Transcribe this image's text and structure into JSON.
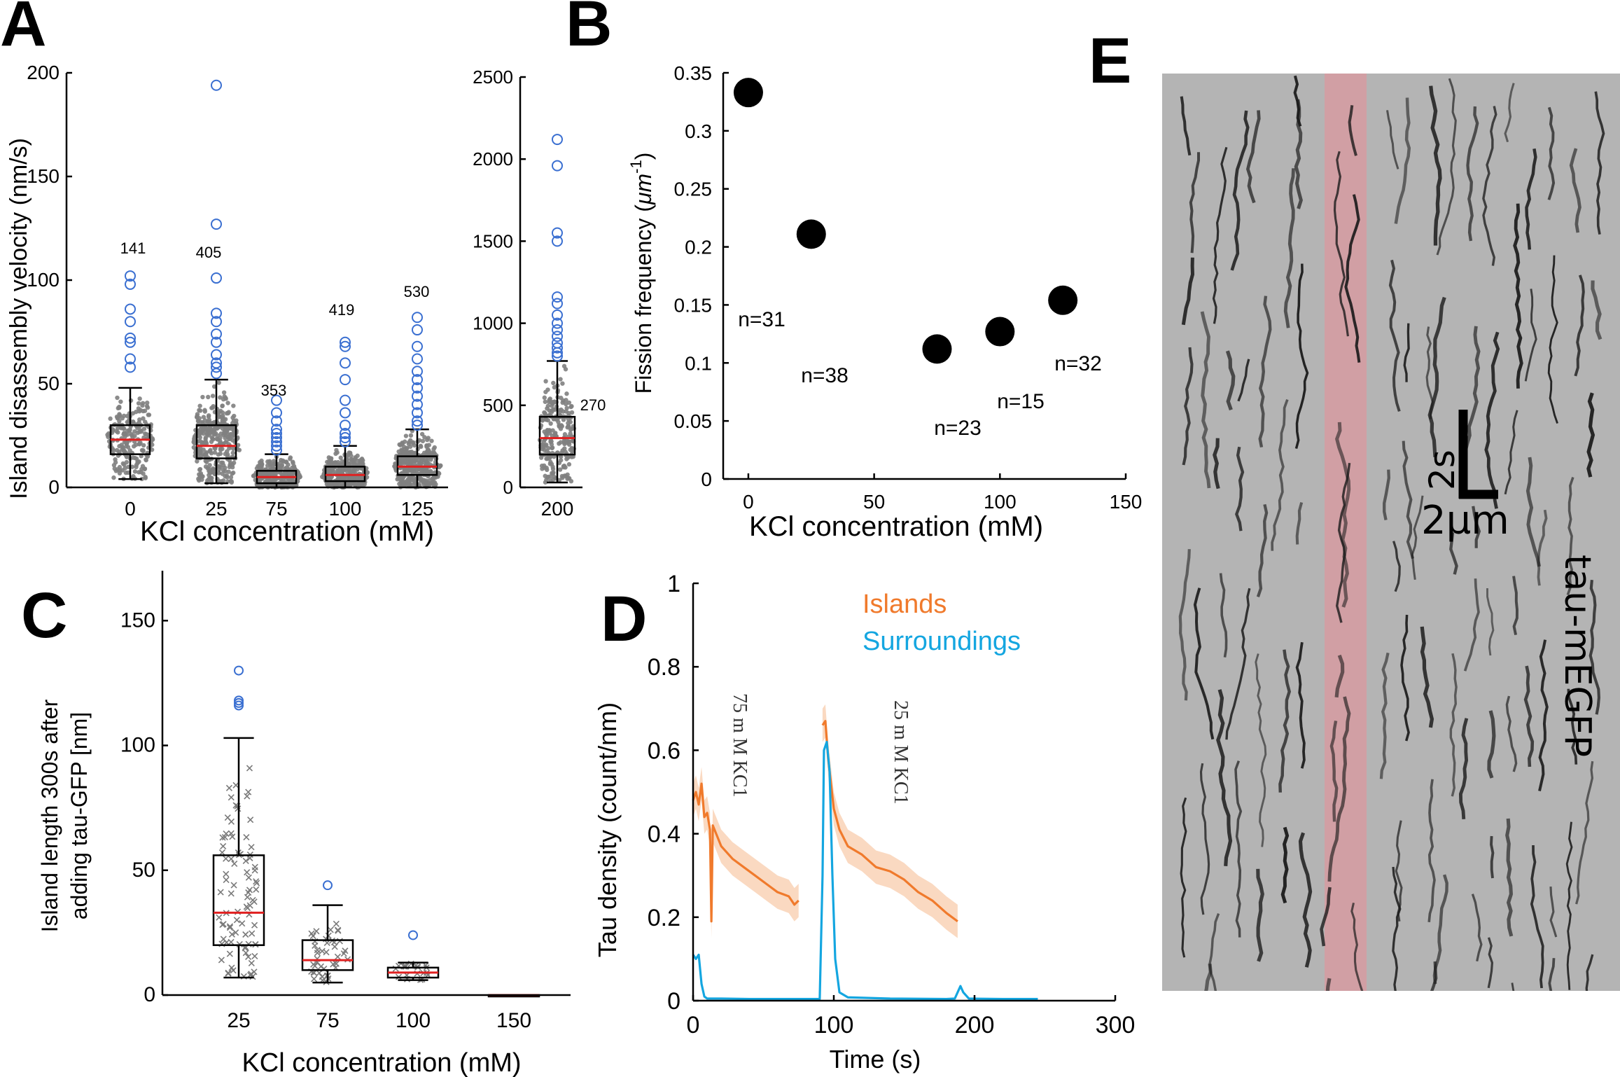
{
  "panel_letters": [
    "A",
    "B",
    "C",
    "D",
    "E"
  ],
  "colors": {
    "axis": "#000000",
    "box_fill_A": "#808080",
    "outlier": "#3a6fd1",
    "median": "#e02020",
    "scatter_C": "#7a7a7a",
    "islands": "#f07a2c",
    "islands_band": "#f8c9a6",
    "surroundings": "#14a6e0",
    "kymo_bg": "#b4b4b4",
    "kymo_band": "#d89aa0"
  },
  "chart_data": [
    {
      "panel": "A",
      "type": "box",
      "xlabel": "KCl concentration (mM)",
      "ylabel": "Island disassembly velocity (nm/s)",
      "ylim": [
        0,
        200
      ],
      "yticks": [
        "0",
        "50",
        "100",
        "150",
        "200"
      ],
      "categories": [
        "0",
        "25",
        "75",
        "100",
        "125"
      ],
      "n_labels": [
        "141",
        "405",
        "353",
        "419",
        "530"
      ],
      "boxes": [
        {
          "q1": 16,
          "median": 23,
          "q3": 30,
          "whisker_low": 4,
          "whisker_high": 48,
          "outliers": [
            102,
            98,
            86,
            80,
            72,
            70,
            62,
            58
          ]
        },
        {
          "q1": 14,
          "median": 20,
          "q3": 30,
          "whisker_low": 2,
          "whisker_high": 52,
          "outliers": [
            194,
            127,
            101,
            84,
            80,
            74,
            70,
            64,
            60,
            58,
            55
          ]
        },
        {
          "q1": 2,
          "median": 5,
          "q3": 8,
          "whisker_low": 0,
          "whisker_high": 16,
          "outliers": [
            42,
            36,
            32,
            28,
            26,
            24,
            22,
            20,
            18
          ]
        },
        {
          "q1": 3,
          "median": 6,
          "q3": 10,
          "whisker_low": 0,
          "whisker_high": 20,
          "outliers": [
            70,
            68,
            60,
            52,
            42,
            36,
            30,
            26,
            24,
            22
          ]
        },
        {
          "q1": 6,
          "median": 10,
          "q3": 15,
          "whisker_low": 0,
          "whisker_high": 28,
          "outliers": [
            82,
            76,
            68,
            62,
            56,
            52,
            48,
            44,
            40,
            36,
            32,
            30
          ]
        }
      ]
    },
    {
      "panel": "A-inset",
      "type": "box",
      "ylim": [
        0,
        2500
      ],
      "yticks": [
        "0",
        "500",
        "1000",
        "1500",
        "2000",
        "2500"
      ],
      "categories": [
        "200"
      ],
      "n_labels": [
        "270"
      ],
      "boxes": [
        {
          "q1": 200,
          "median": 300,
          "q3": 430,
          "whisker_low": 30,
          "whisker_high": 770,
          "outliers": [
            2120,
            1960,
            1550,
            1500,
            1160,
            1120,
            1050,
            1000,
            960,
            920,
            880,
            850,
            820,
            800
          ]
        }
      ]
    },
    {
      "panel": "B",
      "type": "scatter",
      "xlabel": "KCl concentration (mM)",
      "ylabel_pre": "Fission frequency (",
      "ylabel_mu": "μm",
      "ylabel_sup": "-1",
      "ylabel_post": ")",
      "xlim": [
        -10,
        150
      ],
      "ylim": [
        0,
        0.35
      ],
      "xticks": [
        "0",
        "50",
        "100",
        "150"
      ],
      "yticks": [
        "0",
        "0.05",
        "0.1",
        "0.15",
        "0.2",
        "0.25",
        "0.3",
        "0.35"
      ],
      "x": [
        0,
        25,
        75,
        100,
        125
      ],
      "y": [
        0.333,
        0.211,
        0.112,
        0.127,
        0.154
      ],
      "n_labels": [
        "n=31",
        "n=38",
        "n=23",
        "n=15",
        "n=32"
      ]
    },
    {
      "panel": "C",
      "type": "box",
      "xlabel": "KCl concentration (mM)",
      "ylabel_line1": "Island length 300s after",
      "ylabel_line2": "adding tau-GFP [nm]",
      "ylim": [
        0,
        170
      ],
      "yticks": [
        "0",
        "50",
        "100",
        "150"
      ],
      "categories": [
        "25",
        "75",
        "100",
        "150"
      ],
      "boxes": [
        {
          "q1": 20,
          "median": 33,
          "q3": 56,
          "whisker_low": 7,
          "whisker_high": 103,
          "outliers": [
            130,
            118,
            117,
            116
          ]
        },
        {
          "q1": 10,
          "median": 14,
          "q3": 22,
          "whisker_low": 5,
          "whisker_high": 36,
          "outliers": [
            44
          ]
        },
        {
          "q1": 7,
          "median": 9,
          "q3": 11,
          "whisker_low": 6,
          "whisker_high": 13,
          "outliers": [
            24
          ]
        },
        {
          "q1": 0,
          "median": 0,
          "q3": 0,
          "whisker_low": 0,
          "whisker_high": 0,
          "outliers": []
        }
      ]
    },
    {
      "panel": "D",
      "type": "line",
      "xlabel": "Time (s)",
      "ylabel": "Tau density (count/nm)",
      "xlim": [
        0,
        300
      ],
      "ylim": [
        0,
        1
      ],
      "xticks": [
        "0",
        "100",
        "200",
        "300"
      ],
      "yticks": [
        "0",
        "0.2",
        "0.4",
        "0.6",
        "0.8",
        "1"
      ],
      "annotations": [
        "75 m M KC1",
        "25 m M KC1"
      ],
      "series": [
        {
          "name": "Islands",
          "x": [
            0,
            2,
            4,
            6,
            8,
            10,
            12,
            13,
            14,
            20,
            28,
            36,
            44,
            52,
            60,
            68,
            72,
            75
          ],
          "y": [
            0.48,
            0.5,
            0.47,
            0.52,
            0.44,
            0.45,
            0.41,
            0.19,
            0.42,
            0.37,
            0.34,
            0.32,
            0.3,
            0.28,
            0.26,
            0.25,
            0.23,
            0.24
          ]
        },
        {
          "name": "Islands",
          "x": [
            92,
            94,
            96,
            98,
            100,
            104,
            110,
            120,
            130,
            140,
            150,
            160,
            170,
            180,
            188
          ],
          "y": [
            0.66,
            0.67,
            0.58,
            0.52,
            0.46,
            0.41,
            0.37,
            0.35,
            0.32,
            0.31,
            0.29,
            0.26,
            0.24,
            0.21,
            0.19
          ]
        },
        {
          "name": "Surroundings",
          "x": [
            0,
            2,
            4,
            6,
            8,
            10,
            20,
            40,
            60,
            80,
            90,
            92,
            93,
            95,
            97,
            99,
            101,
            104,
            110,
            140,
            180,
            186,
            188,
            190,
            192,
            196,
            220,
            245
          ],
          "y": [
            0.11,
            0.1,
            0.11,
            0.04,
            0.01,
            0.005,
            0.005,
            0.004,
            0.004,
            0.004,
            0.004,
            0.3,
            0.6,
            0.62,
            0.55,
            0.3,
            0.1,
            0.02,
            0.008,
            0.005,
            0.004,
            0.005,
            0.02,
            0.035,
            0.02,
            0.005,
            0.004,
            0.004
          ]
        }
      ],
      "legend": [
        "Islands",
        "Surroundings"
      ]
    },
    {
      "panel": "E",
      "type": "image",
      "side_label": "tau-mEGFP",
      "scale_time": "2s",
      "scale_space": "2µm"
    }
  ]
}
